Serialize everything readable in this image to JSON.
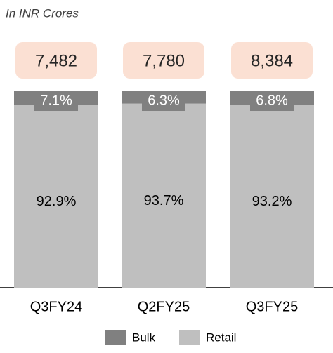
{
  "chart_data": {
    "type": "stacked_bar_100",
    "subtitle": "In INR Crores",
    "categories": [
      "Q3FY24",
      "Q2FY25",
      "Q3FY25"
    ],
    "totals": [
      7482,
      7780,
      8384
    ],
    "total_labels": [
      "7,482",
      "7,780",
      "8,384"
    ],
    "series": [
      {
        "name": "Bulk",
        "color": "#808080",
        "values": [
          7.1,
          6.3,
          6.8
        ],
        "value_labels": [
          "7.1%",
          "6.3%",
          "6.8%"
        ]
      },
      {
        "name": "Retail",
        "color": "#bfbfbf",
        "values": [
          92.9,
          93.7,
          93.2
        ],
        "value_labels": [
          "92.9%",
          "93.7%",
          "93.2%"
        ]
      }
    ],
    "ylim": [
      0,
      100
    ]
  }
}
